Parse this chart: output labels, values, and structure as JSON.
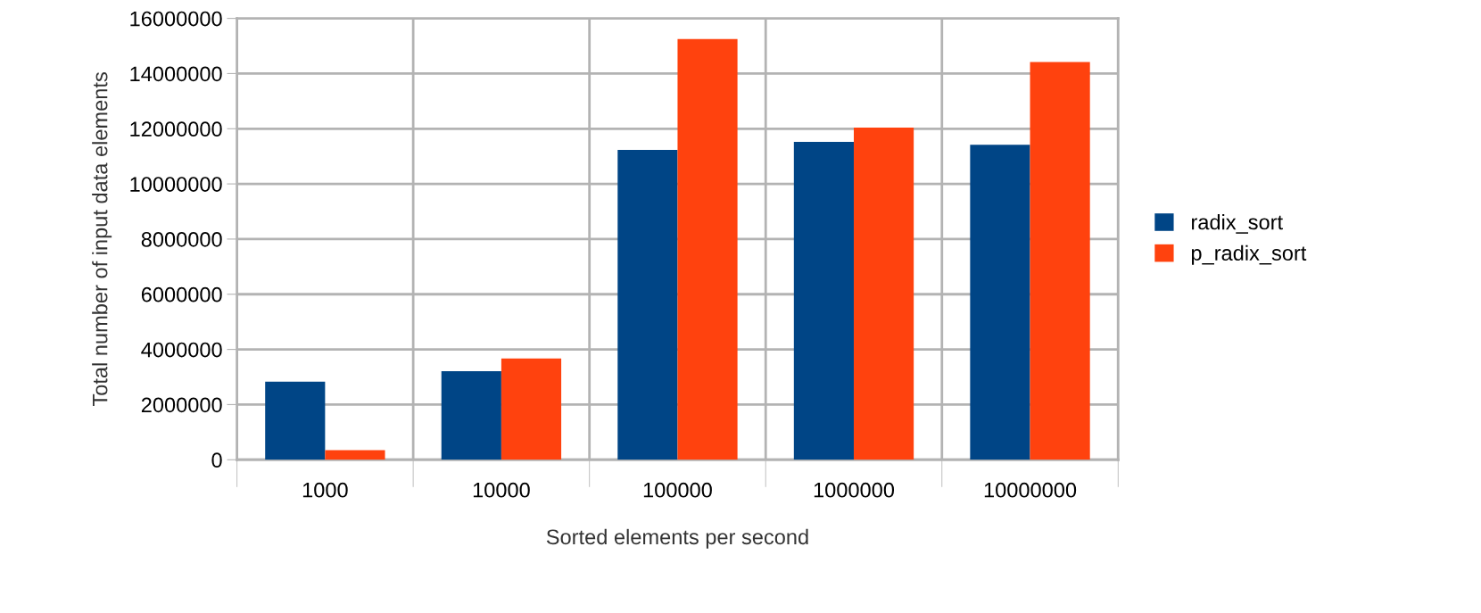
{
  "chart_data": {
    "type": "bar",
    "xlabel": "Sorted elements per second",
    "ylabel": "Total number of input data elements",
    "categories": [
      "1000",
      "10000",
      "100000",
      "1000000",
      "10000000"
    ],
    "series": [
      {
        "name": "radix_sort",
        "color": "#004586",
        "values": [
          2830000,
          3210000,
          11230000,
          11520000,
          11420000
        ]
      },
      {
        "name": "p_radix_sort",
        "color": "#ff420e",
        "values": [
          350000,
          3670000,
          15250000,
          12040000,
          14420000
        ]
      }
    ],
    "ylim": [
      0,
      16000000
    ],
    "yticks": [
      0,
      2000000,
      4000000,
      6000000,
      8000000,
      10000000,
      12000000,
      14000000,
      16000000
    ],
    "grid": true,
    "legend": "right"
  }
}
